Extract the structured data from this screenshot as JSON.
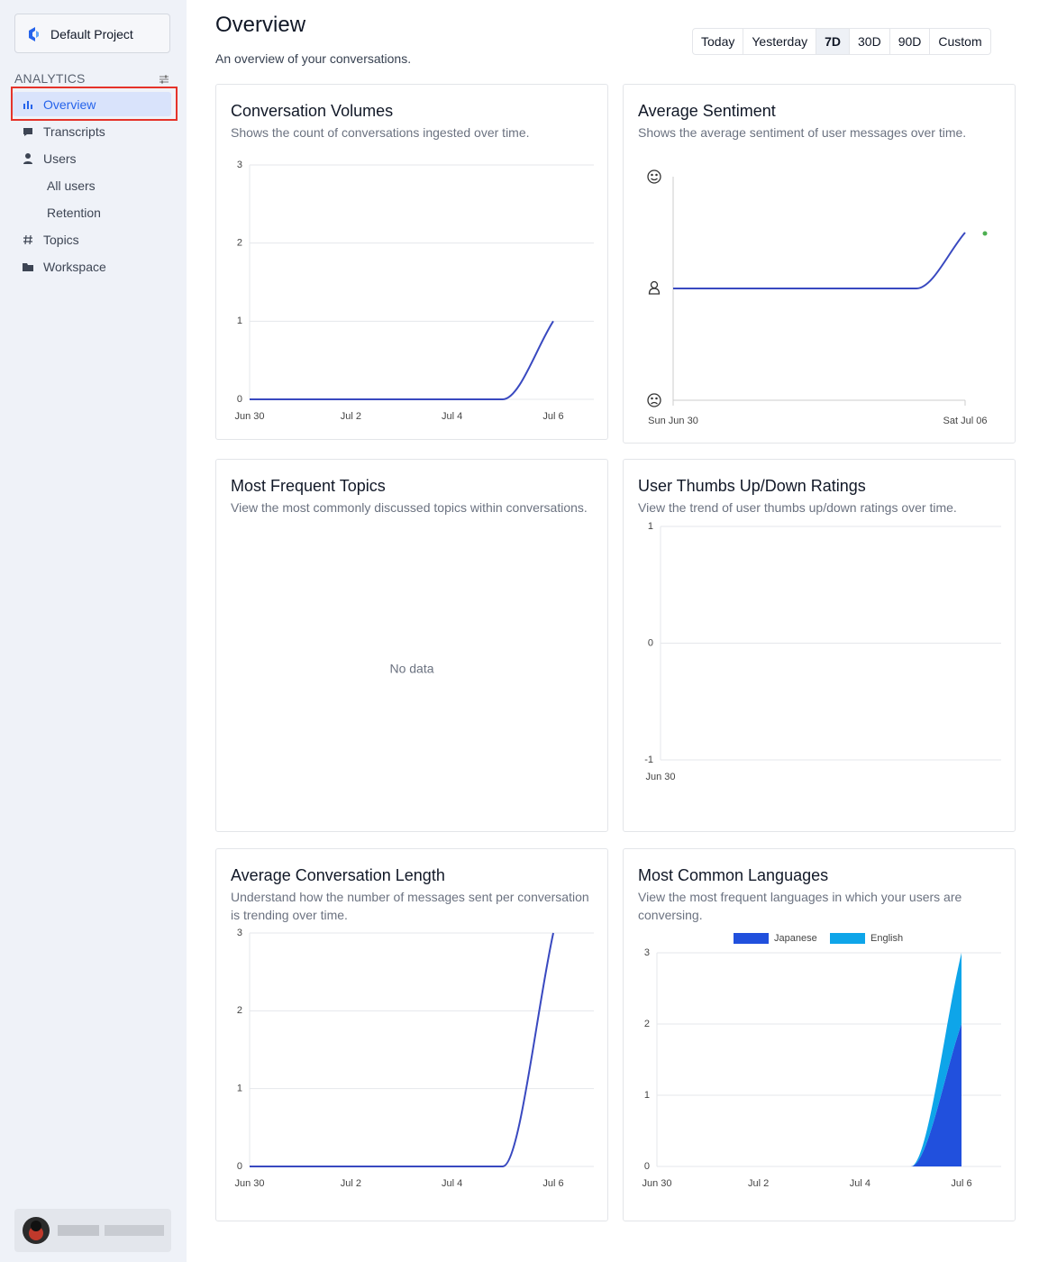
{
  "sidebar": {
    "project": "Default Project",
    "section": "ANALYTICS",
    "nav": [
      "Overview",
      "Transcripts",
      "Users",
      "All users",
      "Retention",
      "Topics",
      "Workspace"
    ],
    "selected": 0
  },
  "header": {
    "title": "Overview",
    "subtitle": "An overview of your conversations.",
    "ranges": [
      "Today",
      "Yesterday",
      "7D",
      "30D",
      "90D",
      "Custom"
    ],
    "selected": 2
  },
  "cards": [
    {
      "title": "Conversation Volumes",
      "description": "Shows the count of conversations ingested over time.",
      "chart": {
        "type": "line",
        "categories": [
          "Jun 30",
          null,
          "Jul 2",
          null,
          "Jul 4",
          null,
          "Jul 6"
        ],
        "values": [
          0,
          0,
          0,
          0,
          0,
          0,
          1
        ],
        "color": "#3949c0",
        "ylim": [
          0,
          3
        ],
        "yticks": [
          0,
          1,
          2,
          3
        ],
        "grid": true
      }
    },
    {
      "title": "Average Sentiment",
      "description": "Shows the average sentiment of user messages over time.",
      "chart": {
        "type": "line",
        "categories": [
          "Sun Jun 30",
          null,
          null,
          null,
          null,
          null,
          "Sat Jul 06"
        ],
        "values": [
          0,
          0,
          0,
          0,
          0,
          0,
          0.5
        ],
        "color": "#3949c0",
        "ylim": [
          -1,
          1
        ]
      }
    },
    {
      "title": "Most Frequent Topics",
      "description": "View the most commonly discussed topics within conversations.",
      "chart": {
        "type": "empty",
        "message": "No data"
      }
    },
    {
      "title": "User Thumbs Up/Down Ratings",
      "description": "View the trend of user thumbs up/down ratings over time.",
      "chart": {
        "type": "line",
        "categories": [
          "Jun 30"
        ],
        "ylim": [
          -1,
          1
        ],
        "yticks": [
          -1,
          0,
          1
        ],
        "grid": true
      }
    },
    {
      "title": "Average Conversation Length",
      "description": "Understand how the number of messages sent per conversation is trending over time.",
      "chart": {
        "type": "line",
        "categories": [
          "Jun 30",
          null,
          "Jul 2",
          null,
          "Jul 4",
          null,
          "Jul 6"
        ],
        "values": [
          0,
          0,
          0,
          0,
          0,
          0,
          3
        ],
        "color": "#3949c0",
        "ylim": [
          0,
          3
        ],
        "yticks": [
          0,
          1,
          2,
          3
        ],
        "grid": true
      }
    },
    {
      "title": "Most Common Languages",
      "description": "View the most frequent languages in which your users are conversing.",
      "chart": {
        "type": "area",
        "stacked": true,
        "legend": "top",
        "categories": [
          "Jun 30",
          null,
          "Jul 2",
          null,
          "Jul 4",
          null,
          "Jul 6"
        ],
        "series": [
          {
            "name": "Japanese",
            "color": "#2150dd",
            "values": [
              0,
              0,
              0,
              0,
              0,
              0,
              2
            ]
          },
          {
            "name": "English",
            "color": "#0ea5e9",
            "values": [
              0,
              0,
              0,
              0,
              0,
              0,
              1
            ]
          }
        ],
        "ylim": [
          0,
          3
        ],
        "yticks": [
          0,
          1,
          2,
          3
        ],
        "grid": true
      }
    }
  ]
}
